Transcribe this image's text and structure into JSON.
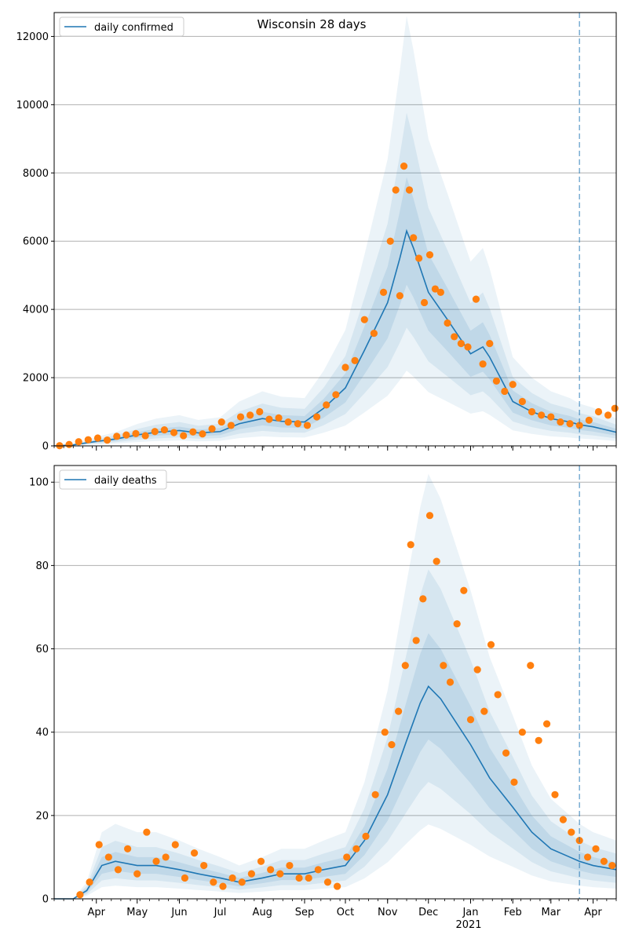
{
  "title": "Wisconsin 28 days",
  "colors": {
    "line": "#1f77b4",
    "points": "#ff7f0e",
    "band": "#1f77b4",
    "grid": "#b0b0b0",
    "vline": "#1f77b4"
  },
  "month_labels": [
    "Apr",
    "May",
    "Jun",
    "Jul",
    "Aug",
    "Sep",
    "Oct",
    "Nov",
    "Dec",
    "Jan",
    "Feb",
    "Mar",
    "Apr"
  ],
  "year_label": "2021",
  "chart_data": [
    {
      "type": "line",
      "legend": "daily confirmed",
      "legend_position": "top-left",
      "grid": true,
      "x_range": [
        "2020-03-01",
        "2021-04-18"
      ],
      "ylim": [
        0,
        12700
      ],
      "yticks": [
        0,
        2000,
        4000,
        6000,
        8000,
        10000,
        12000
      ],
      "forecast_start": "2021-03-22",
      "series": [
        {
          "name": "daily confirmed",
          "x": [
            "2020-03-01",
            "2020-03-15",
            "2020-04-01",
            "2020-04-15",
            "2020-05-01",
            "2020-05-15",
            "2020-06-01",
            "2020-06-15",
            "2020-07-01",
            "2020-07-15",
            "2020-08-01",
            "2020-08-15",
            "2020-09-01",
            "2020-09-15",
            "2020-10-01",
            "2020-10-15",
            "2020-11-01",
            "2020-11-10",
            "2020-11-15",
            "2020-11-20",
            "2020-12-01",
            "2020-12-15",
            "2021-01-01",
            "2021-01-10",
            "2021-01-15",
            "2021-02-01",
            "2021-02-15",
            "2021-03-01",
            "2021-03-15",
            "2021-03-22",
            "2021-04-01",
            "2021-04-18"
          ],
          "values": [
            0,
            30,
            130,
            200,
            320,
            400,
            450,
            380,
            420,
            650,
            800,
            720,
            700,
            1100,
            1700,
            2800,
            4200,
            5500,
            6300,
            5800,
            4500,
            3700,
            2700,
            2900,
            2600,
            1300,
            1000,
            800,
            700,
            620,
            560,
            400
          ]
        }
      ],
      "points": {
        "x": [
          "2020-03-05",
          "2020-03-12",
          "2020-03-19",
          "2020-03-26",
          "2020-04-02",
          "2020-04-09",
          "2020-04-16",
          "2020-04-23",
          "2020-04-30",
          "2020-05-07",
          "2020-05-14",
          "2020-05-21",
          "2020-05-28",
          "2020-06-04",
          "2020-06-11",
          "2020-06-18",
          "2020-06-25",
          "2020-07-02",
          "2020-07-09",
          "2020-07-16",
          "2020-07-23",
          "2020-07-30",
          "2020-08-06",
          "2020-08-13",
          "2020-08-20",
          "2020-08-27",
          "2020-09-03",
          "2020-09-10",
          "2020-09-17",
          "2020-09-24",
          "2020-10-01",
          "2020-10-08",
          "2020-10-15",
          "2020-10-22",
          "2020-10-29",
          "2020-11-03",
          "2020-11-07",
          "2020-11-10",
          "2020-11-13",
          "2020-11-17",
          "2020-11-20",
          "2020-11-24",
          "2020-11-28",
          "2020-12-02",
          "2020-12-06",
          "2020-12-10",
          "2020-12-15",
          "2020-12-20",
          "2020-12-25",
          "2020-12-30",
          "2021-01-05",
          "2021-01-10",
          "2021-01-15",
          "2021-01-20",
          "2021-01-26",
          "2021-02-01",
          "2021-02-08",
          "2021-02-15",
          "2021-02-22",
          "2021-03-01",
          "2021-03-08",
          "2021-03-15",
          "2021-03-22",
          "2021-03-29",
          "2021-04-05",
          "2021-04-12",
          "2021-04-17"
        ],
        "values": [
          5,
          40,
          120,
          180,
          230,
          170,
          280,
          320,
          360,
          300,
          420,
          470,
          390,
          300,
          410,
          350,
          500,
          700,
          600,
          850,
          900,
          1000,
          780,
          820,
          700,
          650,
          600,
          850,
          1200,
          1500,
          2300,
          2500,
          3700,
          3300,
          4500,
          6000,
          7500,
          4400,
          8200,
          7500,
          6100,
          5500,
          4200,
          5600,
          4600,
          4500,
          3600,
          3200,
          3000,
          2900,
          4300,
          2400,
          3000,
          1900,
          1600,
          1800,
          1300,
          1000,
          900,
          850,
          700,
          650,
          600,
          750,
          1000,
          900,
          1100
        ]
      }
    },
    {
      "type": "line",
      "legend": "daily deaths",
      "legend_position": "top-left",
      "grid": true,
      "x_range": [
        "2020-03-01",
        "2021-04-18"
      ],
      "ylim": [
        0,
        104
      ],
      "yticks": [
        0,
        20,
        40,
        60,
        80,
        100
      ],
      "forecast_start": "2021-03-22",
      "series": [
        {
          "name": "daily deaths",
          "x": [
            "2020-03-01",
            "2020-03-15",
            "2020-03-25",
            "2020-04-05",
            "2020-04-15",
            "2020-05-01",
            "2020-05-15",
            "2020-06-01",
            "2020-06-15",
            "2020-07-01",
            "2020-07-15",
            "2020-08-01",
            "2020-08-15",
            "2020-09-01",
            "2020-09-15",
            "2020-10-01",
            "2020-10-15",
            "2020-11-01",
            "2020-11-15",
            "2020-11-25",
            "2020-12-01",
            "2020-12-10",
            "2020-12-20",
            "2021-01-01",
            "2021-01-15",
            "2021-02-01",
            "2021-02-15",
            "2021-03-01",
            "2021-03-15",
            "2021-03-22",
            "2021-04-01",
            "2021-04-18"
          ],
          "values": [
            0,
            0,
            2,
            8,
            9,
            8,
            8,
            7,
            6,
            5,
            4,
            5,
            6,
            6,
            7,
            8,
            14,
            25,
            38,
            47,
            51,
            48,
            43,
            37,
            29,
            22,
            16,
            12,
            10,
            9,
            8,
            7
          ]
        }
      ],
      "points": {
        "x": [
          "2020-03-20",
          "2020-03-27",
          "2020-04-03",
          "2020-04-10",
          "2020-04-17",
          "2020-04-24",
          "2020-05-01",
          "2020-05-08",
          "2020-05-15",
          "2020-05-22",
          "2020-05-29",
          "2020-06-05",
          "2020-06-12",
          "2020-06-19",
          "2020-06-26",
          "2020-07-03",
          "2020-07-10",
          "2020-07-17",
          "2020-07-24",
          "2020-07-31",
          "2020-08-07",
          "2020-08-14",
          "2020-08-21",
          "2020-08-28",
          "2020-09-04",
          "2020-09-11",
          "2020-09-18",
          "2020-09-25",
          "2020-10-02",
          "2020-10-09",
          "2020-10-16",
          "2020-10-23",
          "2020-10-30",
          "2020-11-04",
          "2020-11-09",
          "2020-11-14",
          "2020-11-18",
          "2020-11-22",
          "2020-11-27",
          "2020-12-02",
          "2020-12-07",
          "2020-12-12",
          "2020-12-17",
          "2020-12-22",
          "2020-12-27",
          "2021-01-01",
          "2021-01-06",
          "2021-01-11",
          "2021-01-16",
          "2021-01-21",
          "2021-01-27",
          "2021-02-02",
          "2021-02-08",
          "2021-02-14",
          "2021-02-20",
          "2021-02-26",
          "2021-03-04",
          "2021-03-10",
          "2021-03-16",
          "2021-03-22",
          "2021-03-28",
          "2021-04-03",
          "2021-04-09",
          "2021-04-15"
        ],
        "values": [
          1,
          4,
          13,
          10,
          7,
          12,
          6,
          16,
          9,
          10,
          13,
          5,
          11,
          8,
          4,
          3,
          5,
          4,
          6,
          9,
          7,
          6,
          8,
          5,
          5,
          7,
          4,
          3,
          10,
          12,
          15,
          25,
          40,
          37,
          45,
          56,
          85,
          62,
          72,
          92,
          81,
          56,
          52,
          66,
          74,
          43,
          55,
          45,
          61,
          49,
          35,
          28,
          40,
          56,
          38,
          42,
          25,
          19,
          16,
          14,
          10,
          12,
          9,
          8
        ]
      }
    }
  ]
}
